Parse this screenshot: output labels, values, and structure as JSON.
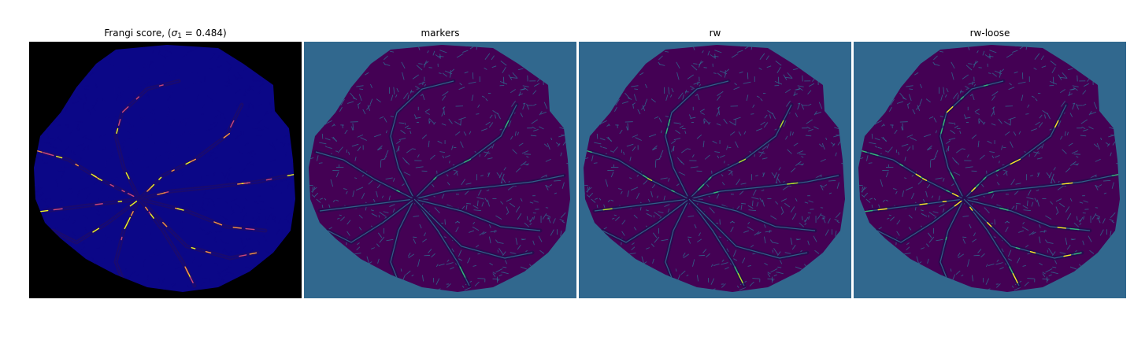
{
  "figure": {
    "panels": [
      {
        "title_prefix": "Frangi score, (",
        "title_symbol": "σ",
        "title_subscript": "1",
        "title_suffix": " = 0.484)",
        "colormap": "plasma",
        "background_color": "#000000",
        "fill_color": "#0b0787",
        "vessel_color": "#0d0887",
        "highlight_colors": [
          "#cc4778",
          "#f89540",
          "#f0f921"
        ]
      },
      {
        "title": "markers",
        "colormap": "viridis",
        "background_color": "#31688e",
        "fill_color": "#440154",
        "vessel_color": "#31688e",
        "highlight_colors": [
          "#35b779"
        ]
      },
      {
        "title": "rw",
        "colormap": "viridis",
        "background_color": "#31688e",
        "fill_color": "#440154",
        "vessel_color": "#31688e",
        "highlight_colors": [
          "#35b779",
          "#b5de2b"
        ]
      },
      {
        "title": "rw-loose",
        "colormap": "viridis",
        "background_color": "#31688e",
        "fill_color": "#440154",
        "vessel_color": "#31688e",
        "highlight_colors": [
          "#35b779",
          "#fde725"
        ]
      }
    ]
  }
}
